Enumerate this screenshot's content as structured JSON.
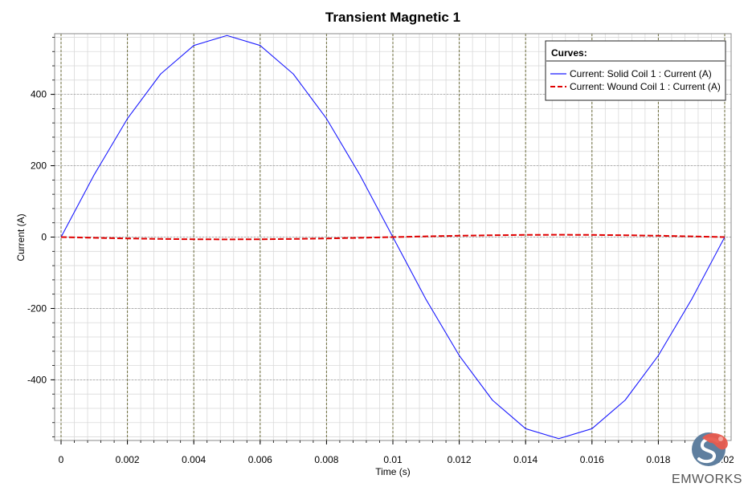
{
  "chart_data": {
    "type": "line",
    "title": "Transient Magnetic 1",
    "xlabel": "Time (s)",
    "ylabel": "Current (A)",
    "xlim": [
      0,
      0.02
    ],
    "ylim": [
      -570,
      570
    ],
    "x_ticks": [
      0,
      0.002,
      0.004,
      0.006,
      0.008,
      0.01,
      0.012,
      0.014,
      0.016,
      0.018,
      0.02
    ],
    "x_tick_labels": [
      "0",
      "0.002",
      "0.004",
      "0.006",
      "0.008",
      "0.01",
      "0.012",
      "0.014",
      "0.016",
      "0.018",
      "0.02"
    ],
    "y_ticks": [
      -400,
      -200,
      0,
      200,
      400
    ],
    "y_tick_labels": [
      "-400",
      "-200",
      "0",
      "200",
      "400"
    ],
    "grid": true,
    "legend": {
      "title": "Curves:",
      "placement": "top-right"
    },
    "series": [
      {
        "name": "Current:  Solid Coil 1 : Current (A)",
        "color": "#1a1aff",
        "style": "solid",
        "x": [
          0,
          0.001,
          0.002,
          0.003,
          0.004,
          0.005,
          0.006,
          0.007,
          0.008,
          0.009,
          0.01,
          0.011,
          0.012,
          0.013,
          0.014,
          0.015,
          0.016,
          0.017,
          0.018,
          0.019,
          0.02
        ],
        "y": [
          0,
          175,
          332,
          457,
          537,
          565,
          537,
          457,
          332,
          175,
          0,
          -175,
          -332,
          -457,
          -537,
          -565,
          -537,
          -457,
          -332,
          -175,
          0
        ]
      },
      {
        "name": "Current:  Wound Coil 1 : Current (A)",
        "color": "#e00000",
        "style": "dashed",
        "x": [
          0,
          0.001,
          0.002,
          0.003,
          0.004,
          0.005,
          0.006,
          0.007,
          0.008,
          0.009,
          0.01,
          0.011,
          0.012,
          0.013,
          0.014,
          0.015,
          0.016,
          0.017,
          0.018,
          0.019,
          0.02
        ],
        "y": [
          0,
          -2,
          -3.8,
          -5.2,
          -6.1,
          -6.4,
          -6.1,
          -5.2,
          -3.8,
          -2,
          0,
          2,
          3.8,
          5.2,
          6.1,
          6.4,
          6.1,
          5.2,
          3.8,
          2,
          0
        ]
      }
    ]
  },
  "brand": {
    "logo_icon": "emworks-logo-icon",
    "name": "EMWORKS",
    "logo_colors": [
      "#5a7fa6",
      "#e05a4f"
    ]
  }
}
